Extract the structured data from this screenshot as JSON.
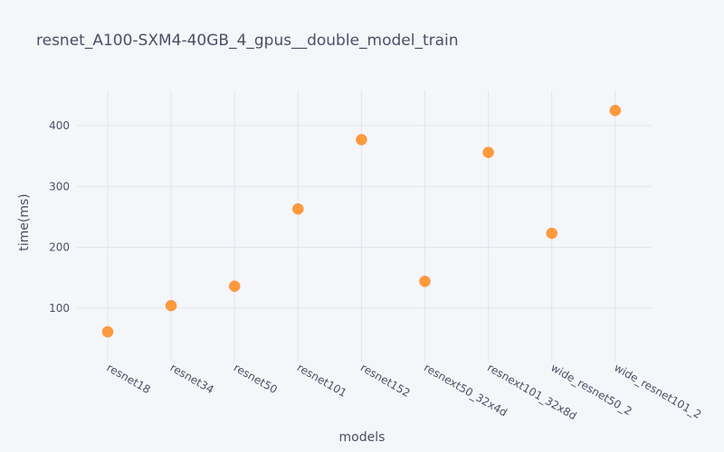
{
  "chart_data": {
    "type": "scatter",
    "title": "resnet_A100-SXM4-40GB_4_gpus__double_model_train",
    "xlabel": "models",
    "ylabel": "time(ms)",
    "categories": [
      "resnet18",
      "resnet34",
      "resnet50",
      "resnet101",
      "resnet152",
      "resnext50_32x4d",
      "resnext101_32x8d",
      "wide_resnet50_2",
      "wide_resnet101_2"
    ],
    "values": [
      61,
      104,
      136,
      263,
      377,
      144,
      356,
      223,
      425
    ],
    "yticks": [
      100,
      200,
      300,
      400
    ],
    "ylim": [
      12,
      458
    ],
    "grid": true,
    "marker_color": "#ff9a3c"
  }
}
